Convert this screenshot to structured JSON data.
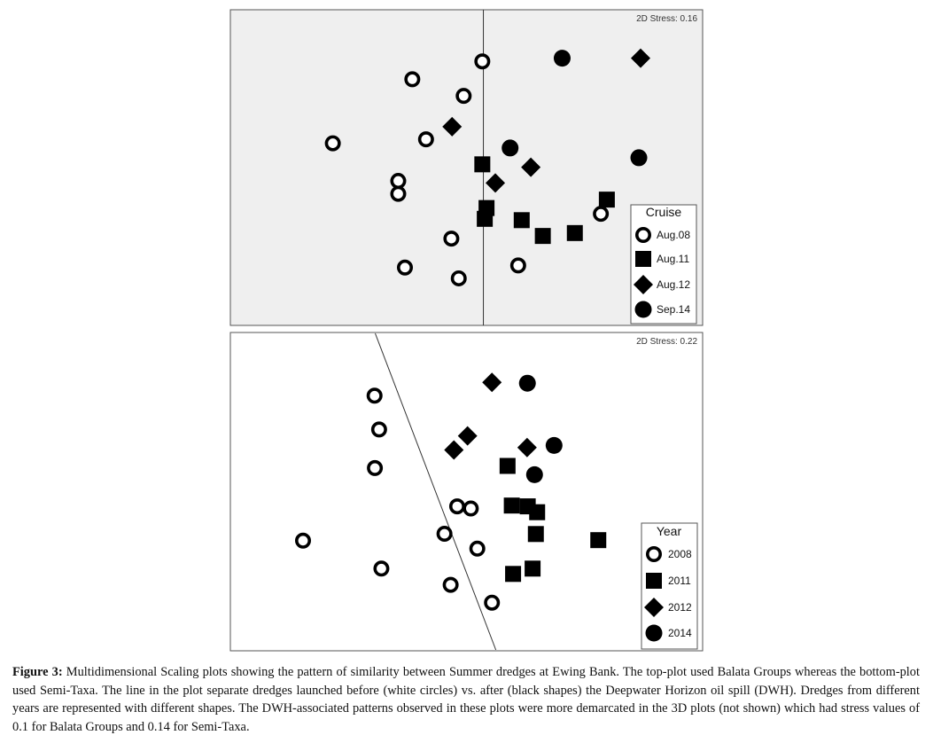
{
  "caption": {
    "label": "Figure 3:",
    "text": "Multidimensional Scaling plots showing the pattern of similarity between Summer dredges at Ewing Bank. The top-plot used Balata Groups whereas the bottom-plot used Semi-Taxa. The line in the plot separate dredges launched before (white circles) vs. after (black shapes) the Deepwater Horizon oil spill (DWH). Dredges from different years are represented with different shapes. The DWH-associated patterns observed in these plots were more demarcated in the 3D plots (not shown) which had stress values of 0.1 for Balata Groups and 0.14 for Semi-Taxa."
  },
  "chart_data": [
    {
      "type": "scatter",
      "title": "",
      "stress_label": "2D Stress: 0.16",
      "background": "#efefef",
      "axes": "none",
      "grid": false,
      "xlim": [
        0,
        1
      ],
      "ylim": [
        0,
        1
      ],
      "separator": {
        "x1": 0.553,
        "y1": 1.0,
        "x2": 0.553,
        "y2": 0.0
      },
      "legend": {
        "title": "Cruise",
        "placement": "bottom-right",
        "entries": [
          {
            "label": "Aug.08",
            "marker": "ring"
          },
          {
            "label": "Aug.11",
            "marker": "square"
          },
          {
            "label": "Aug.12",
            "marker": "diamond"
          },
          {
            "label": "Sep.14",
            "marker": "dot"
          }
        ]
      },
      "series": [
        {
          "marker": "ring",
          "points": [
            [
              0.55,
              0.905
            ],
            [
              0.351,
              0.837
            ],
            [
              0.497,
              0.774
            ],
            [
              0.125,
              0.594
            ],
            [
              0.39,
              0.609
            ],
            [
              0.311,
              0.451
            ],
            [
              0.311,
              0.402
            ],
            [
              0.887,
              0.326
            ],
            [
              0.462,
              0.232
            ],
            [
              0.33,
              0.122
            ],
            [
              0.483,
              0.081
            ],
            [
              0.652,
              0.13
            ]
          ]
        },
        {
          "marker": "square",
          "points": [
            [
              0.55,
              0.514
            ],
            [
              0.904,
              0.38
            ],
            [
              0.562,
              0.348
            ],
            [
              0.557,
              0.307
            ],
            [
              0.662,
              0.302
            ],
            [
              0.722,
              0.242
            ],
            [
              0.813,
              0.253
            ]
          ]
        },
        {
          "marker": "diamond",
          "points": [
            [
              1.0,
              0.917
            ],
            [
              0.464,
              0.657
            ],
            [
              0.688,
              0.503
            ],
            [
              0.587,
              0.443
            ]
          ]
        },
        {
          "marker": "dot",
          "points": [
            [
              0.777,
              0.917
            ],
            [
              0.629,
              0.576
            ],
            [
              0.995,
              0.539
            ]
          ]
        }
      ]
    },
    {
      "type": "scatter",
      "title": "",
      "stress_label": "2D Stress: 0.22",
      "background": "#ffffff",
      "axes": "none",
      "grid": false,
      "xlim": [
        0,
        1
      ],
      "ylim": [
        0,
        1
      ],
      "separator": {
        "x1": 0.222,
        "y1": 1.0,
        "x2": 0.593,
        "y2": 0.0
      },
      "legend": {
        "title": "Year",
        "placement": "bottom-right",
        "entries": [
          {
            "label": "2008",
            "marker": "ring"
          },
          {
            "label": "2011",
            "marker": "square"
          },
          {
            "label": "2012",
            "marker": "diamond"
          },
          {
            "label": "2014",
            "marker": "dot"
          }
        ]
      },
      "series": [
        {
          "marker": "ring",
          "points": [
            [
              0.22,
              0.859
            ],
            [
              0.234,
              0.732
            ],
            [
              0.221,
              0.587
            ],
            [
              0.0,
              0.314
            ],
            [
              0.474,
              0.443
            ],
            [
              0.516,
              0.435
            ],
            [
              0.435,
              0.34
            ],
            [
              0.536,
              0.284
            ],
            [
              0.241,
              0.209
            ],
            [
              0.454,
              0.148
            ],
            [
              0.581,
              0.081
            ]
          ]
        },
        {
          "marker": "square",
          "points": [
            [
              0.629,
              0.595
            ],
            [
              0.642,
              0.446
            ],
            [
              0.691,
              0.443
            ],
            [
              0.72,
              0.421
            ],
            [
              0.716,
              0.339
            ],
            [
              0.908,
              0.316
            ],
            [
              0.706,
              0.209
            ],
            [
              0.646,
              0.189
            ]
          ]
        },
        {
          "marker": "diamond",
          "points": [
            [
              0.581,
              0.909
            ],
            [
              0.506,
              0.708
            ],
            [
              0.464,
              0.655
            ],
            [
              0.689,
              0.664
            ]
          ]
        },
        {
          "marker": "dot",
          "points": [
            [
              0.69,
              0.906
            ],
            [
              0.772,
              0.672
            ],
            [
              0.712,
              0.562
            ]
          ]
        }
      ]
    }
  ]
}
